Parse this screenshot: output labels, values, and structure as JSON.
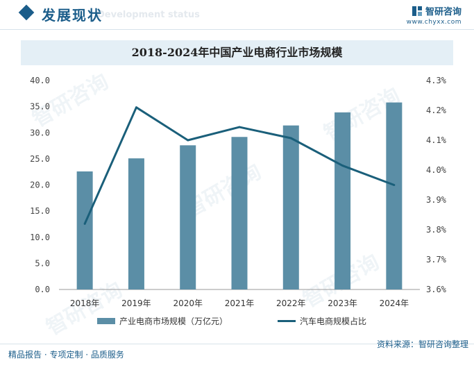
{
  "header": {
    "section_title": "发展现状",
    "section_subtitle": "Development status",
    "brand_name": "智研咨询",
    "brand_url": "www.chyxx.com"
  },
  "watermark_text": "智研咨询",
  "footer": {
    "left_text": "精品报告 · 专项定制 · 品质服务",
    "source_text": "资料来源：智研咨询整理"
  },
  "colors": {
    "bar": "#5b8ea6",
    "line": "#1a5f7a",
    "brand": "#1b5d8a"
  },
  "chart_data": {
    "type": "bar",
    "title": "2018-2024年中国产业电商行业市场规模",
    "categories": [
      "2018年",
      "2019年",
      "2020年",
      "2021年",
      "2022年",
      "2023年",
      "2024年"
    ],
    "series": [
      {
        "name": "产业电商市场规模（万亿元）",
        "type": "bar",
        "axis": "left",
        "values": [
          22.6,
          25.1,
          27.6,
          29.2,
          31.4,
          33.9,
          35.8
        ]
      },
      {
        "name": "汽车电商规模占比",
        "type": "line",
        "axis": "right",
        "values": [
          3.82,
          4.21,
          4.1,
          4.144,
          4.107,
          4.015,
          3.95
        ]
      }
    ],
    "y_left": {
      "range": [
        0,
        40
      ],
      "ticks": [
        "0.0",
        "5.0",
        "10.0",
        "15.0",
        "20.0",
        "25.0",
        "30.0",
        "35.0",
        "40.0"
      ]
    },
    "y_right": {
      "range": [
        3.6,
        4.3
      ],
      "ticks": [
        "3.6%",
        "3.7%",
        "3.8%",
        "3.9%",
        "4.0%",
        "4.1%",
        "4.2%",
        "4.3%"
      ]
    },
    "grid": false,
    "legend_position": "bottom"
  }
}
